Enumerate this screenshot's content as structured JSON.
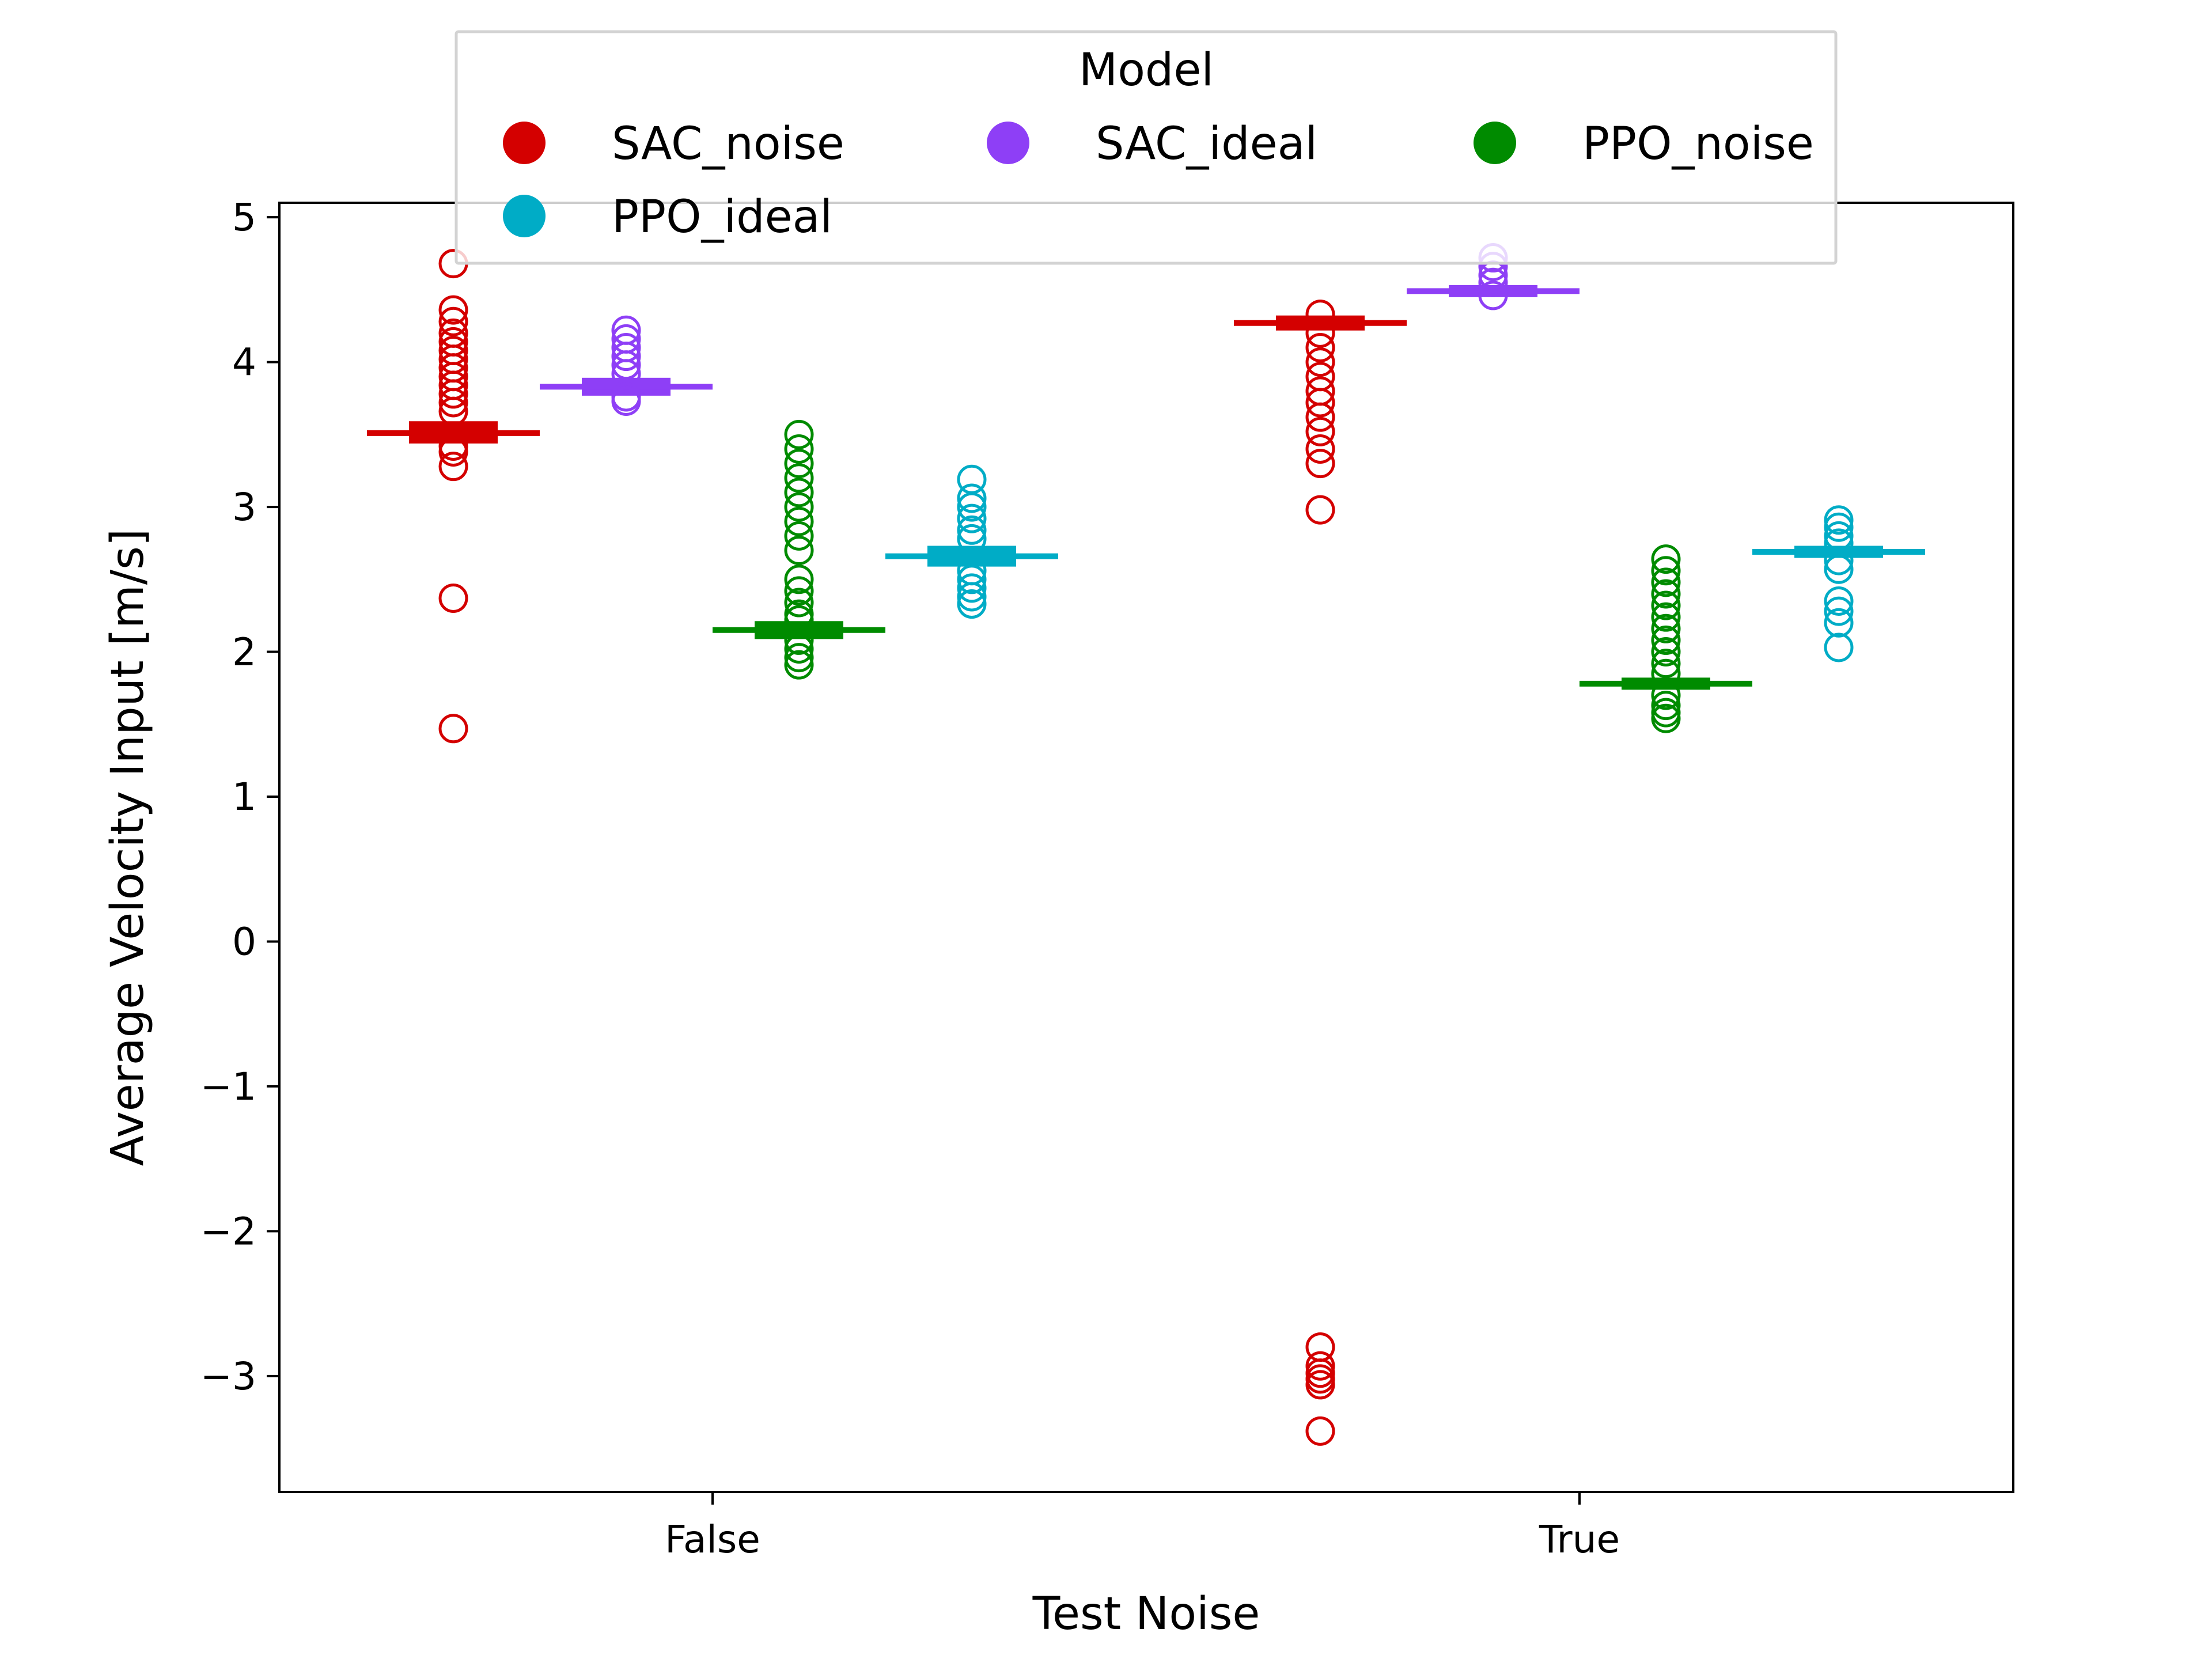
{
  "chart_data": {
    "type": "boxplot",
    "xlabel": "Test Noise",
    "ylabel": "Average Velocity Input [m/s]",
    "categories": [
      "False",
      "True"
    ],
    "ylim": [
      -3.8,
      5.1
    ],
    "yticks": [
      5,
      4,
      3,
      2,
      1,
      0,
      -1,
      -2,
      -3
    ],
    "ytick_labels": [
      "5",
      "4",
      "3",
      "2",
      "1",
      "0",
      "−1",
      "−2",
      "−3"
    ],
    "grid": false,
    "legend": {
      "title": "Model",
      "placement": "top-center",
      "columns": 3
    },
    "series": [
      {
        "name": "SAC_noise",
        "color": "#d40000",
        "boxes": [
          {
            "category": "False",
            "median": 3.51,
            "q1": 3.47,
            "q3": 3.56,
            "outliers": [
              4.68,
              4.36,
              4.28,
              4.2,
              4.14,
              4.08,
              4.02,
              3.96,
              3.9,
              3.84,
              3.78,
              3.72,
              3.66,
              3.42,
              3.38,
              3.28,
              2.37,
              1.47
            ]
          },
          {
            "category": "True",
            "median": 4.27,
            "q1": 4.25,
            "q3": 4.29,
            "outliers": [
              4.33,
              4.2,
              4.1,
              4.0,
              3.9,
              3.8,
              3.72,
              3.62,
              3.52,
              3.4,
              3.3,
              2.98,
              -2.8,
              -2.93,
              -2.98,
              -3.02,
              -3.06,
              -3.38
            ]
          }
        ]
      },
      {
        "name": "SAC_ideal",
        "color": "#8e3ff6",
        "boxes": [
          {
            "category": "False",
            "median": 3.83,
            "q1": 3.8,
            "q3": 3.86,
            "outliers": [
              4.22,
              4.16,
              4.1,
              4.04,
              3.98,
              3.92,
              3.76,
              3.73
            ]
          },
          {
            "category": "True",
            "median": 4.49,
            "q1": 4.48,
            "q3": 4.5,
            "outliers": [
              4.72,
              4.66,
              4.6,
              4.55,
              4.46
            ]
          }
        ]
      },
      {
        "name": "PPO_noise",
        "color": "#008b00",
        "boxes": [
          {
            "category": "False",
            "median": 2.15,
            "q1": 2.12,
            "q3": 2.18,
            "outliers": [
              3.5,
              3.4,
              3.3,
              3.2,
              3.1,
              3.0,
              2.9,
              2.8,
              2.7,
              2.5,
              2.42,
              2.34,
              2.26,
              2.22,
              2.08,
              2.02,
              1.96,
              1.91
            ]
          },
          {
            "category": "True",
            "median": 1.78,
            "q1": 1.77,
            "q3": 1.79,
            "outliers": [
              2.64,
              2.56,
              2.48,
              2.4,
              2.32,
              2.24,
              2.16,
              2.08,
              2.0,
              1.92,
              1.85,
              1.7,
              1.63,
              1.58,
              1.54
            ]
          }
        ]
      },
      {
        "name": "PPO_ideal",
        "color": "#00acc6",
        "boxes": [
          {
            "category": "False",
            "median": 2.66,
            "q1": 2.62,
            "q3": 2.7,
            "outliers": [
              3.19,
              3.06,
              3.0,
              2.92,
              2.84,
              2.78,
              2.56,
              2.5,
              2.44,
              2.38,
              2.33
            ]
          },
          {
            "category": "True",
            "median": 2.69,
            "q1": 2.68,
            "q3": 2.7,
            "outliers": [
              2.91,
              2.86,
              2.8,
              2.75,
              2.63,
              2.57,
              2.35,
              2.28,
              2.2,
              2.03
            ]
          }
        ]
      }
    ]
  }
}
